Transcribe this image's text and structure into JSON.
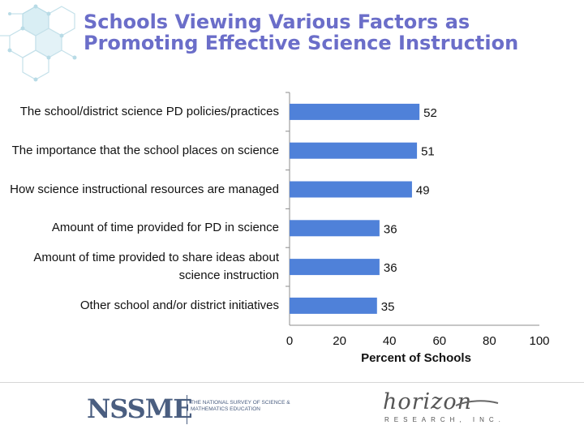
{
  "title": "Schools Viewing Various Factors as Promoting Effective Science Instruction",
  "chart_data": {
    "type": "bar",
    "orientation": "horizontal",
    "categories": [
      "The school/district science PD policies/practices",
      "The importance that the school places on science",
      "How science instructional resources are managed",
      "Amount of time provided for PD in science",
      "Amount of time provided to share ideas about science instruction",
      "Other school and/or district initiatives"
    ],
    "values": [
      52,
      51,
      49,
      36,
      36,
      35
    ],
    "value_labels": [
      "52",
      "51",
      "49",
      "36",
      "36",
      "35"
    ],
    "xlabel": "Percent of Schools",
    "xlim": [
      0,
      100
    ],
    "xticks": [
      "0",
      "20",
      "40",
      "60",
      "80",
      "100"
    ],
    "bar_color": "#4f81d9",
    "grid": false
  },
  "footer": {
    "left_logo_text": "NSSME",
    "left_logo_subtitle": "THE NATIONAL SURVEY OF SCIENCE & MATHEMATICS EDUCATION",
    "right_logo_text": "horizon",
    "right_logo_subtitle": "RESEARCH, INC."
  },
  "colors": {
    "title": "#6b6ec9",
    "bar": "#4f81d9",
    "logo": "#4a5e80",
    "decoration": "#b8dbe6"
  }
}
